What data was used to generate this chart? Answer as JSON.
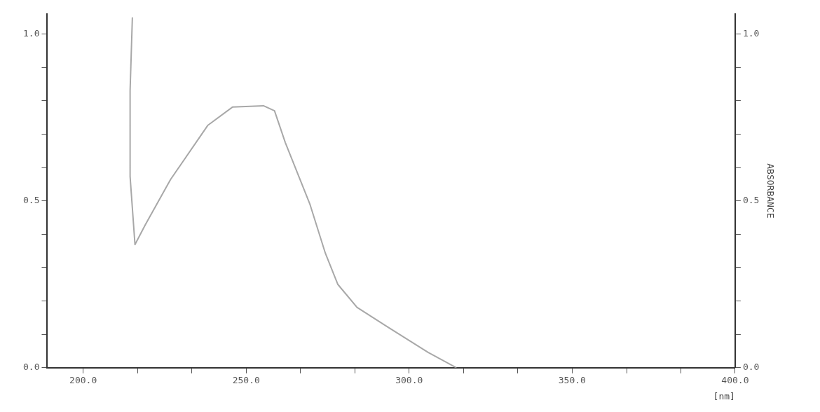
{
  "chart_data": {
    "type": "line",
    "xlabel": "[nm]",
    "y2label": "ABSORBANCE",
    "series": [
      {
        "color": "#a8a8a8",
        "x": [
          215.1,
          214.4,
          214.4,
          215.9,
          219.1,
          226.8,
          238.2,
          245.8,
          255.3,
          258.7,
          262.0,
          269.6,
          274.3,
          278.1,
          284.0,
          293.4,
          305.8,
          314.5
        ],
        "values": [
          1.05,
          0.83,
          0.573,
          0.369,
          0.429,
          0.564,
          0.726,
          0.781,
          0.785,
          0.77,
          0.675,
          0.489,
          0.343,
          0.25,
          0.181,
          0.122,
          0.046,
          0.0
        ]
      }
    ],
    "xlim": [
      189,
      400
    ],
    "xticks": [
      {
        "value": 200,
        "label": "200.0"
      },
      {
        "value": 216.7,
        "label": null
      },
      {
        "value": 233.3,
        "label": null
      },
      {
        "value": 250,
        "label": "250.0"
      },
      {
        "value": 266.7,
        "label": null
      },
      {
        "value": 283.3,
        "label": null
      },
      {
        "value": 300,
        "label": "300.0"
      },
      {
        "value": 316.7,
        "label": null
      },
      {
        "value": 333.3,
        "label": null
      },
      {
        "value": 350,
        "label": "350.0"
      },
      {
        "value": 366.7,
        "label": null
      },
      {
        "value": 383.3,
        "label": null
      },
      {
        "value": 400,
        "label": "400.0"
      }
    ],
    "ylim": [
      0,
      1.06
    ],
    "yticks": [
      {
        "value": 0,
        "label": "0.0"
      },
      {
        "value": 0.1,
        "label": null
      },
      {
        "value": 0.2,
        "label": null
      },
      {
        "value": 0.3,
        "label": null
      },
      {
        "value": 0.4,
        "label": null
      },
      {
        "value": 0.5,
        "label": "0.5"
      },
      {
        "value": 0.6,
        "label": null
      },
      {
        "value": 0.7,
        "label": null
      },
      {
        "value": 0.8,
        "label": null
      },
      {
        "value": 0.9,
        "label": null
      },
      {
        "value": 1.0,
        "label": "1.0"
      }
    ],
    "y2lim": [
      0,
      1.06
    ],
    "y2ticks": [
      {
        "value": 0,
        "label": "0.0"
      },
      {
        "value": 0.1,
        "label": null
      },
      {
        "value": 0.2,
        "label": null
      },
      {
        "value": 0.3,
        "label": null
      },
      {
        "value": 0.4,
        "label": null
      },
      {
        "value": 0.5,
        "label": "0.5"
      },
      {
        "value": 0.6,
        "label": null
      },
      {
        "value": 0.7,
        "label": null
      },
      {
        "value": 0.8,
        "label": null
      },
      {
        "value": 0.9,
        "label": null
      },
      {
        "value": 1.0,
        "label": "1.0"
      }
    ],
    "grid": false,
    "legend": false,
    "marker": "none",
    "line_style": "solid"
  }
}
